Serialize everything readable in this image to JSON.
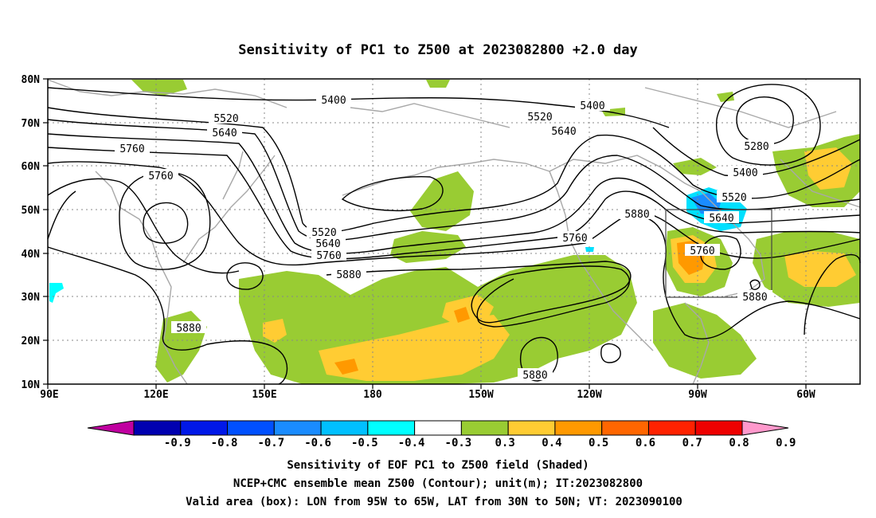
{
  "title": "Sensitivity of PC1 to Z500 at 2023082800 +2.0 day",
  "map": {
    "lat_labels": [
      "80N",
      "70N",
      "60N",
      "50N",
      "40N",
      "30N",
      "20N",
      "10N"
    ],
    "lon_labels": [
      "90E",
      "120E",
      "150E",
      "180",
      "150W",
      "120W",
      "90W",
      "60W"
    ],
    "contour_labels": [
      {
        "text": "5400"
      },
      {
        "text": "5400"
      },
      {
        "text": "5280"
      },
      {
        "text": "5400"
      },
      {
        "text": "5520"
      },
      {
        "text": "5520"
      },
      {
        "text": "5520"
      },
      {
        "text": "5520"
      },
      {
        "text": "5640"
      },
      {
        "text": "5640"
      },
      {
        "text": "5640"
      },
      {
        "text": "5640"
      },
      {
        "text": "5760"
      },
      {
        "text": "5760"
      },
      {
        "text": "5760"
      },
      {
        "text": "5760"
      },
      {
        "text": "5760"
      },
      {
        "text": "5880"
      },
      {
        "text": "5880"
      },
      {
        "text": "5880"
      },
      {
        "text": "5880"
      },
      {
        "text": "5880"
      }
    ]
  },
  "colorbar": {
    "labels": [
      "-0.9",
      "-0.8",
      "-0.7",
      "-0.6",
      "-0.5",
      "-0.4",
      "-0.3",
      "0.3",
      "0.4",
      "0.5",
      "0.6",
      "0.7",
      "0.8",
      "0.9"
    ],
    "colors": [
      "#c000a0",
      "#0000b0",
      "#0018e8",
      "#0050ff",
      "#1a8cff",
      "#00c0ff",
      "#00ffff",
      "#ffffff",
      "#99cc33",
      "#ffcc33",
      "#ff9900",
      "#ff6600",
      "#ff2200",
      "#ee0000",
      "#ff99cc"
    ]
  },
  "caption": {
    "line1": "Sensitivity of EOF PC1 to Z500 field (Shaded)",
    "line2": "NCEP+CMC ensemble mean Z500 (Contour); unit(m); IT:2023082800",
    "line3": "Valid area (box): LON from 95W to 65W, LAT from 30N to 50N; VT: 2023090100"
  }
}
